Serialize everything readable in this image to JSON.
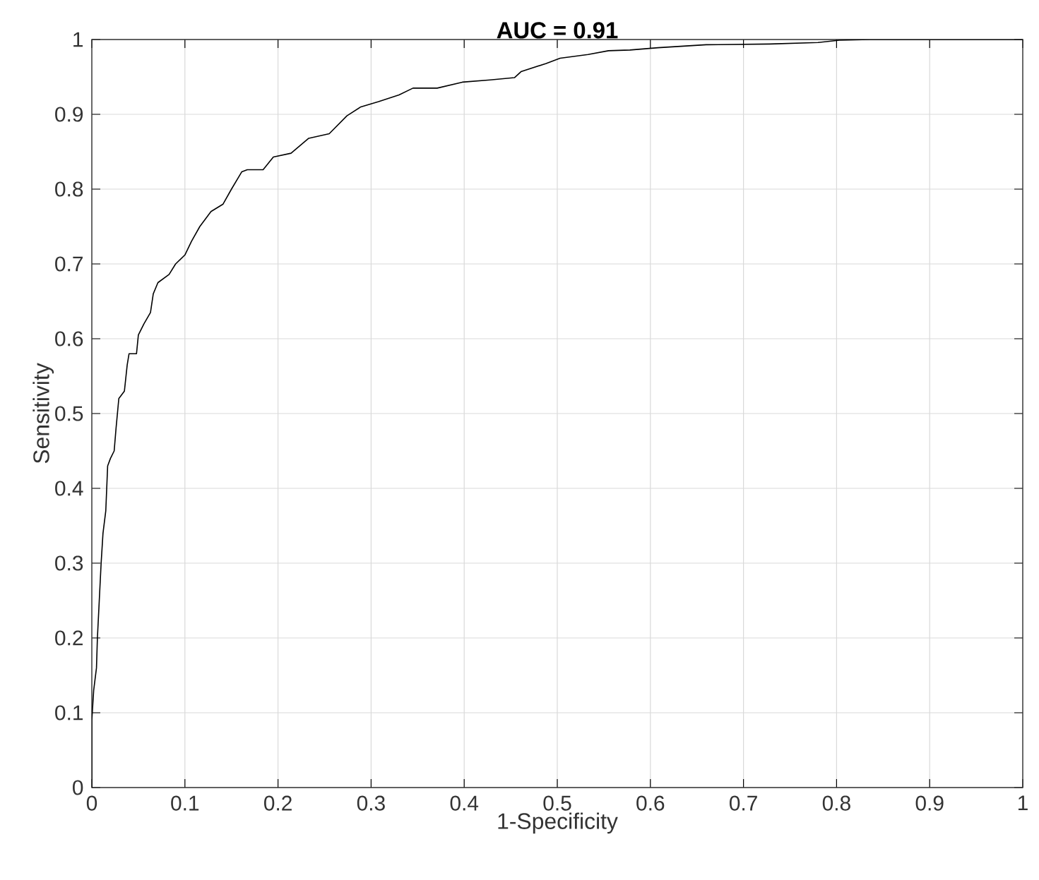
{
  "chart_data": {
    "type": "line",
    "title": "AUC = 0.91",
    "xlabel": "1-Specificity",
    "ylabel": "Sensitivity",
    "xlim": [
      0,
      1
    ],
    "ylim": [
      0,
      1
    ],
    "xticks": [
      0,
      0.1,
      0.2,
      0.3,
      0.4,
      0.5,
      0.6,
      0.7,
      0.8,
      0.9,
      1
    ],
    "yticks": [
      0,
      0.1,
      0.2,
      0.3,
      0.4,
      0.5,
      0.6,
      0.7,
      0.8,
      0.9,
      1
    ],
    "grid": true,
    "series": [
      {
        "color": "#000000",
        "x": [
          0,
          0,
          0.002,
          0.005,
          0.006,
          0.008,
          0.01,
          0.012,
          0.015,
          0.017,
          0.02,
          0.024,
          0.026,
          0.029,
          0.035,
          0.038,
          0.04,
          0.048,
          0.05,
          0.056,
          0.063,
          0.066,
          0.071,
          0.083,
          0.09,
          0.1,
          0.107,
          0.116,
          0.128,
          0.141,
          0.15,
          0.161,
          0.167,
          0.184,
          0.195,
          0.214,
          0.233,
          0.255,
          0.274,
          0.289,
          0.308,
          0.33,
          0.345,
          0.371,
          0.398,
          0.428,
          0.454,
          0.461,
          0.488,
          0.503,
          0.533,
          0.555,
          0.578,
          0.608,
          0.66,
          0.728,
          0.78,
          0.803,
          0.836,
          1
        ],
        "values": [
          0,
          0.09,
          0.13,
          0.16,
          0.2,
          0.25,
          0.3,
          0.34,
          0.37,
          0.43,
          0.44,
          0.45,
          0.48,
          0.52,
          0.53,
          0.565,
          0.58,
          0.58,
          0.605,
          0.62,
          0.635,
          0.66,
          0.675,
          0.686,
          0.7,
          0.712,
          0.73,
          0.75,
          0.77,
          0.78,
          0.8,
          0.823,
          0.826,
          0.826,
          0.843,
          0.848,
          0.868,
          0.874,
          0.898,
          0.91,
          0.917,
          0.926,
          0.935,
          0.935,
          0.943,
          0.946,
          0.949,
          0.957,
          0.968,
          0.975,
          0.98,
          0.985,
          0.986,
          0.989,
          0.993,
          0.994,
          0.996,
          0.999,
          1,
          1
        ]
      }
    ]
  }
}
